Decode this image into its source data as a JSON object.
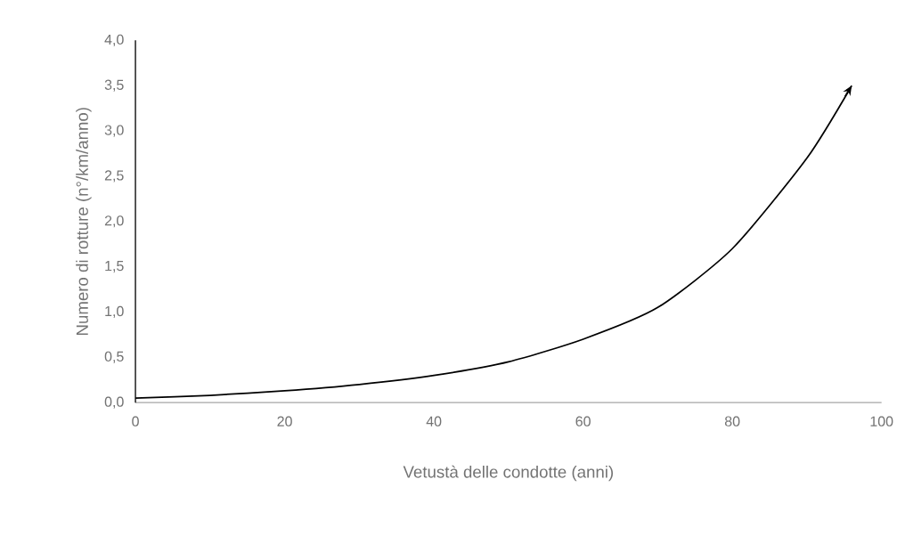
{
  "chart_data": {
    "type": "line",
    "xlabel": "Vetustà delle condotte (anni)",
    "ylabel": "Numero di rotture (n°/km/anno)",
    "x": [
      0,
      10,
      20,
      30,
      40,
      50,
      60,
      70,
      80,
      90,
      96
    ],
    "series": [
      {
        "color": "#000000",
        "values": [
          0.05,
          0.08,
          0.13,
          0.2,
          0.3,
          0.45,
          0.7,
          1.05,
          1.7,
          2.7,
          3.5
        ]
      }
    ],
    "xlim": [
      0,
      100
    ],
    "ylim": [
      0,
      4
    ],
    "xticks": [
      0,
      20,
      40,
      60,
      80,
      100
    ],
    "yticks": [
      {
        "value": 0,
        "label": "0,0"
      },
      {
        "value": 0.5,
        "label": "0,5"
      },
      {
        "value": 1,
        "label": "1,0"
      },
      {
        "value": 1.5,
        "label": "1,5"
      },
      {
        "value": 2,
        "label": "2,0"
      },
      {
        "value": 2.5,
        "label": "2,5"
      },
      {
        "value": 3,
        "label": "3,0"
      },
      {
        "value": 3.5,
        "label": "3,5"
      },
      {
        "value": 4,
        "label": "4,0"
      }
    ],
    "grid": false,
    "marker": "none",
    "line_style": "solid"
  }
}
